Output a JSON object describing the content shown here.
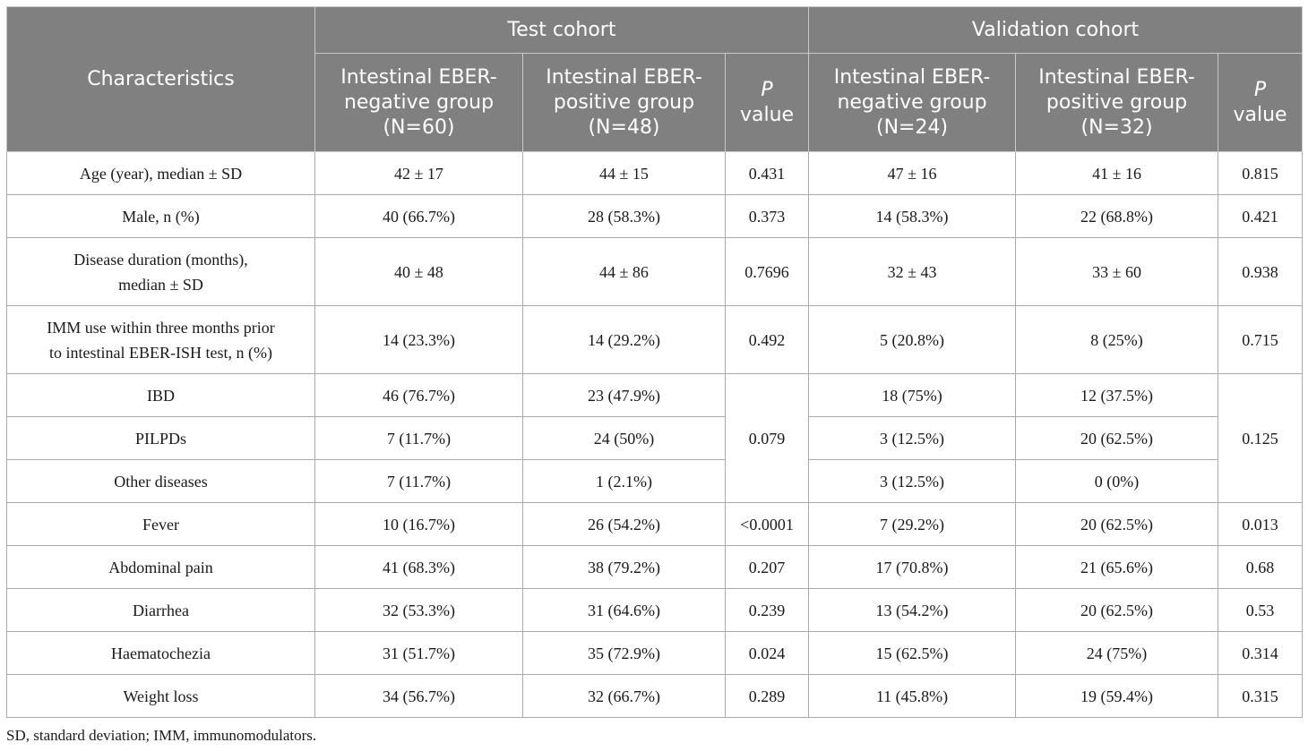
{
  "header": {
    "characteristics": "Characteristics",
    "test_cohort": "Test cohort",
    "validation_cohort": "Validation cohort",
    "test_neg": [
      "Intestinal EBER-",
      "negative group",
      "(N=60)"
    ],
    "test_pos": [
      "Intestinal EBER-",
      "positive group",
      "(N=48)"
    ],
    "val_neg": [
      "Intestinal EBER-",
      "negative group",
      "(N=24)"
    ],
    "val_pos": [
      "Intestinal EBER-",
      "positive group",
      "(N=32)"
    ],
    "p": "P",
    "value": "value"
  },
  "rows": [
    {
      "label": [
        "Age (year), median ± SD"
      ],
      "tn": "42 ± 17",
      "tp": "44 ± 15",
      "tpv": "0.431",
      "vn": "47 ± 16",
      "vp": "41 ± 16",
      "vpv": "0.815"
    },
    {
      "label": [
        "Male, n (%)"
      ],
      "tn": "40 (66.7%)",
      "tp": "28 (58.3%)",
      "tpv": "0.373",
      "vn": "14 (58.3%)",
      "vp": "22 (68.8%)",
      "vpv": "0.421"
    },
    {
      "label": [
        "Disease duration (months),",
        "median ± SD"
      ],
      "tn": "40 ± 48",
      "tp": "44 ± 86",
      "tpv": "0.7696",
      "vn": "32 ± 43",
      "vp": "33 ± 60",
      "vpv": "0.938"
    },
    {
      "label": [
        "IMM use within three months prior",
        "to intestinal EBER-ISH test, n (%)"
      ],
      "tn": "14 (23.3%)",
      "tp": "14 (29.2%)",
      "tpv": "0.492",
      "vn": "5 (20.8%)",
      "vp": "8 (25%)",
      "vpv": "0.715"
    },
    {
      "label": [
        "IBD"
      ],
      "tn": "46 (76.7%)",
      "tp": "23 (47.9%)",
      "vn": "18 (75%)",
      "vp": "12 (37.5%)"
    },
    {
      "label": [
        "PILPDs"
      ],
      "tn": "7 (11.7%)",
      "tp": "24 (50%)",
      "vn": "3 (12.5%)",
      "vp": "20 (62.5%)"
    },
    {
      "label": [
        "Other diseases"
      ],
      "tn": "7 (11.7%)",
      "tp": "1 (2.1%)",
      "vn": "3 (12.5%)",
      "vp": "0 (0%)"
    },
    {
      "label": [
        "Fever"
      ],
      "tn": "10 (16.7%)",
      "tp": "26 (54.2%)",
      "tpv": "<0.0001",
      "vn": "7 (29.2%)",
      "vp": "20 (62.5%)",
      "vpv": "0.013"
    },
    {
      "label": [
        "Abdominal pain"
      ],
      "tn": "41 (68.3%)",
      "tp": "38 (79.2%)",
      "tpv": "0.207",
      "vn": "17 (70.8%)",
      "vp": "21 (65.6%)",
      "vpv": "0.68"
    },
    {
      "label": [
        "Diarrhea"
      ],
      "tn": "32 (53.3%)",
      "tp": "31 (64.6%)",
      "tpv": "0.239",
      "vn": "13 (54.2%)",
      "vp": "20 (62.5%)",
      "vpv": "0.53"
    },
    {
      "label": [
        "Haematochezia"
      ],
      "tn": "31 (51.7%)",
      "tp": "35 (72.9%)",
      "tpv": "0.024",
      "vn": "15 (62.5%)",
      "vp": "24 (75%)",
      "vpv": "0.314"
    },
    {
      "label": [
        "Weight loss"
      ],
      "tn": "34 (56.7%)",
      "tp": "32 (66.7%)",
      "tpv": "0.289",
      "vn": "11 (45.8%)",
      "vp": "19 (59.4%)",
      "vpv": "0.315"
    }
  ],
  "merged_p": {
    "test": "0.079",
    "validation": "0.125"
  },
  "footnote": "SD, standard deviation; IMM, immunomodulators.",
  "colors": {
    "header_bg": "#808080",
    "header_text": "#ffffff",
    "border": "#a9a9a9"
  }
}
